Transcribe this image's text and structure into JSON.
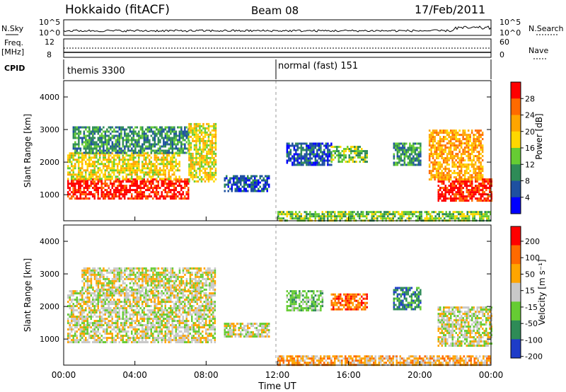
{
  "header": {
    "station": "Hokkaido (fitACF)",
    "beam": "Beam 08",
    "date": "17/Feb/2011"
  },
  "strip_labels": {
    "nsky": "N.Sky",
    "freq": "Freq.",
    "freq_unit": "[MHz]",
    "cpid": "CPID",
    "nsearch": "N.Search",
    "nave": "Nave",
    "noise_ticks_left": [
      "10^5",
      "10^0"
    ],
    "noise_ticks_right": [
      "10^5",
      "10^0"
    ],
    "freq_ticks": [
      "12",
      "8"
    ],
    "nave_ticks": [
      "60",
      "0"
    ]
  },
  "cpid_segments": [
    {
      "label": "themis 3300",
      "start_hour": 0
    },
    {
      "label": "normal (fast) 151",
      "start_hour": 12
    }
  ],
  "colors": {
    "power": [
      "#0000ff",
      "#1e50a0",
      "#2e8b57",
      "#66cc33",
      "#ffd700",
      "#ffa500",
      "#ff6a00",
      "#ff0000"
    ],
    "velocity": [
      "#1e3cc8",
      "#2e8b57",
      "#66cc33",
      "#c8c8c8",
      "#ffa500",
      "#ff6a00",
      "#ff0000"
    ],
    "ground": "#c8c8c8"
  },
  "chart_data": [
    {
      "type": "heatmap",
      "name": "power",
      "ylabel": "Slant Range [km]",
      "xlabel": "Time UT",
      "yticks": [
        "1000",
        "2000",
        "3000",
        "4000"
      ],
      "ylim": [
        200,
        4500
      ],
      "xlim": [
        0,
        24
      ],
      "xticks": [
        "00:00",
        "04:00",
        "08:00",
        "12:00",
        "16:00",
        "20:00",
        "00:00"
      ],
      "colorbar_label": "Power [dB]",
      "colorbar_ticks": [
        "4",
        "8",
        "12",
        "16",
        "20",
        "24",
        "28"
      ],
      "regions": [
        {
          "t0": 0.2,
          "t1": 7.0,
          "r0": 900,
          "r1": 1500,
          "level": 7
        },
        {
          "t0": 0.2,
          "t1": 6.5,
          "r0": 1500,
          "r1": 2300,
          "level": 4
        },
        {
          "t0": 0.5,
          "t1": 7.0,
          "r0": 2300,
          "r1": 3100,
          "level": 2
        },
        {
          "t0": 7.0,
          "t1": 8.5,
          "r0": 1400,
          "r1": 3200,
          "level": 4
        },
        {
          "t0": 9.0,
          "t1": 11.5,
          "r0": 1100,
          "r1": 1600,
          "level": 1
        },
        {
          "t0": 12.5,
          "t1": 15.0,
          "r0": 1900,
          "r1": 2600,
          "level": 1
        },
        {
          "t0": 15.0,
          "t1": 17.0,
          "r0": 2000,
          "r1": 2500,
          "level": 3
        },
        {
          "t0": 18.5,
          "t1": 20.0,
          "r0": 1900,
          "r1": 2600,
          "level": 2
        },
        {
          "t0": 21.0,
          "t1": 24.0,
          "r0": 800,
          "r1": 1500,
          "level": 7
        },
        {
          "t0": 20.5,
          "t1": 23.5,
          "r0": 1500,
          "r1": 3000,
          "level": 5
        },
        {
          "t0": 12.0,
          "t1": 24.0,
          "r0": 200,
          "r1": 500,
          "level": 3
        }
      ]
    },
    {
      "type": "heatmap",
      "name": "velocity",
      "ylabel": "Slant Range [km]",
      "xlabel": "Time UT",
      "yticks": [
        "1000",
        "2000",
        "3000",
        "4000"
      ],
      "ylim": [
        200,
        4500
      ],
      "xlim": [
        0,
        24
      ],
      "xticks": [
        "00:00",
        "04:00",
        "08:00",
        "12:00",
        "16:00",
        "20:00",
        "00:00"
      ],
      "colorbar_label": "Velocity [m s⁻¹]",
      "colorbar_ticks": [
        "200",
        "100",
        "50",
        "15",
        "-15",
        "-50",
        "-100",
        "-200"
      ],
      "regions": [
        {
          "t0": 0.2,
          "t1": 8.5,
          "r0": 900,
          "r1": 2500,
          "level": 3
        },
        {
          "t0": 1.0,
          "t1": 8.5,
          "r0": 2500,
          "r1": 3200,
          "level": 3
        },
        {
          "t0": 9.0,
          "t1": 11.5,
          "r0": 1100,
          "r1": 1500,
          "level": 3
        },
        {
          "t0": 12.5,
          "t1": 14.5,
          "r0": 1900,
          "r1": 2500,
          "level": 2
        },
        {
          "t0": 15.0,
          "t1": 17.0,
          "r0": 1900,
          "r1": 2400,
          "level": 5
        },
        {
          "t0": 18.5,
          "t1": 20.0,
          "r0": 1900,
          "r1": 2600,
          "level": 1
        },
        {
          "t0": 21.0,
          "t1": 24.0,
          "r0": 800,
          "r1": 2000,
          "level": 3
        },
        {
          "t0": 12.0,
          "t1": 24.0,
          "r0": 200,
          "r1": 500,
          "level": 4
        }
      ]
    }
  ]
}
